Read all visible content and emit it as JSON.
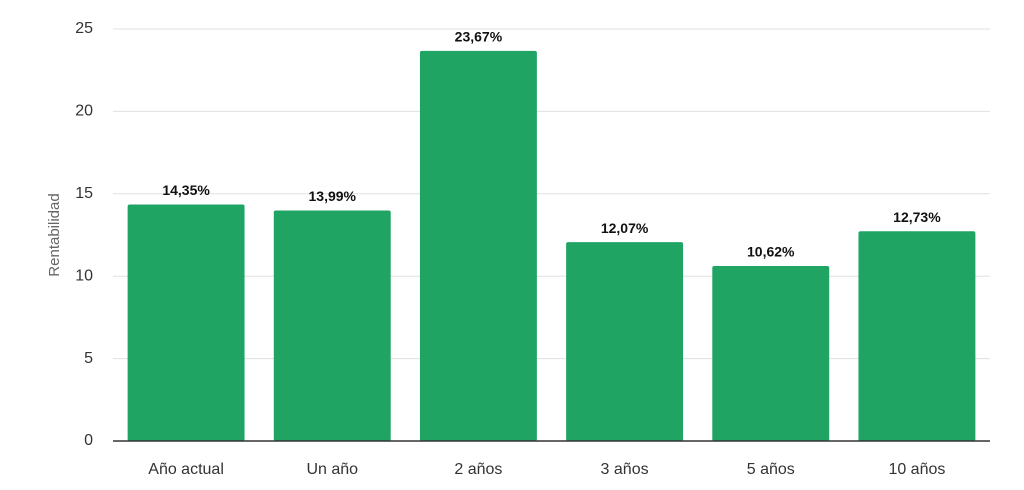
{
  "chart_data": {
    "type": "bar",
    "y_label": "Rentabilidad",
    "categories": [
      "Año actual",
      "Un año",
      "2 años",
      "3 años",
      "5 años",
      "10 años"
    ],
    "values": [
      14.35,
      13.99,
      23.67,
      12.07,
      10.62,
      12.73
    ],
    "value_labels": [
      "14,35%",
      "13,99%",
      "23,67%",
      "12,07%",
      "10,62%",
      "12,73%"
    ],
    "color": "#20a464",
    "ylim": [
      0,
      25
    ],
    "yticks": [
      0,
      5,
      10,
      15,
      20,
      25
    ],
    "grid": true
  }
}
